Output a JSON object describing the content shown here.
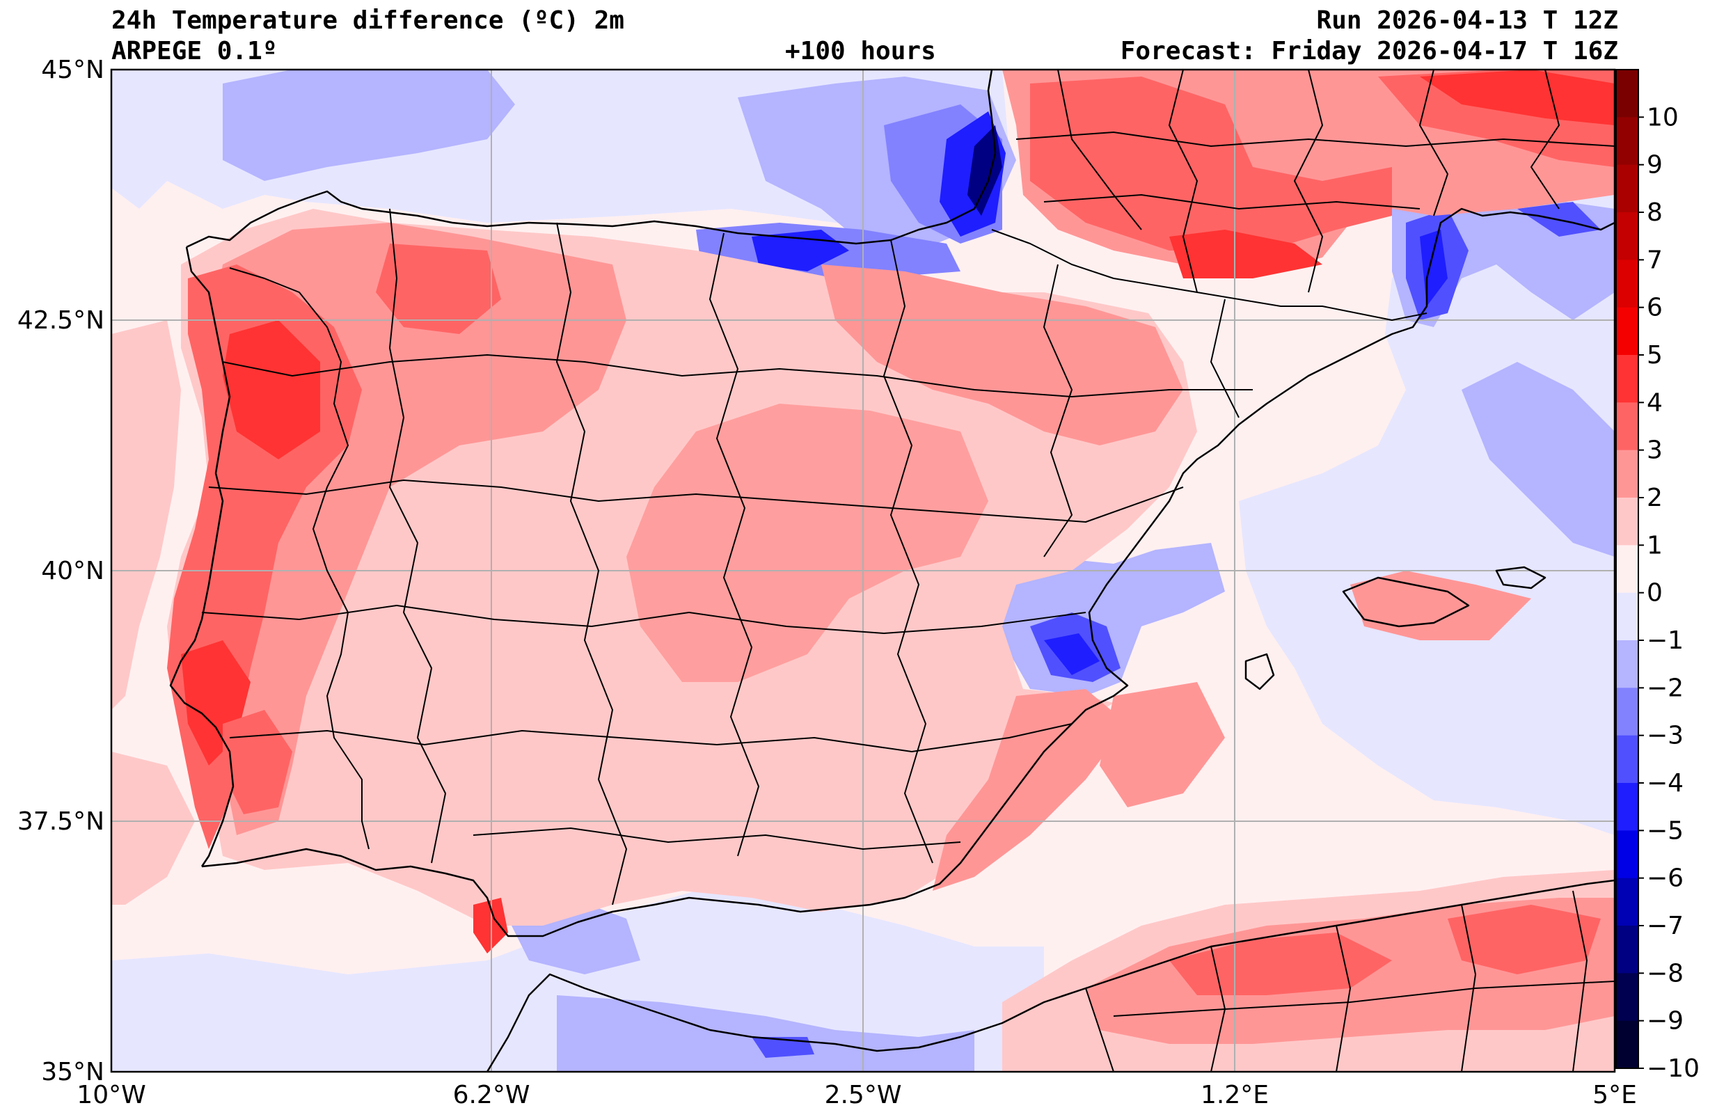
{
  "header": {
    "title": "24h Temperature difference (ºC) 2m",
    "model": "ARPEGE 0.1º",
    "lead_time": "+100 hours",
    "run": "Run 2026-04-13 T 12Z",
    "forecast": "Forecast: Friday 2026-04-17 T 16Z"
  },
  "axes": {
    "lat_labels": [
      "45°N",
      "42.5°N",
      "40°N",
      "37.5°N",
      "35°N"
    ],
    "lon_labels": [
      "10°W",
      "6.2°W",
      "2.5°W",
      "1.2°E",
      "5°E"
    ]
  },
  "colorbar": {
    "labels": [
      "10",
      "9",
      "8",
      "7",
      "6",
      "5",
      "4",
      "3",
      "2",
      "1",
      "0",
      "−1",
      "−2",
      "−3",
      "−4",
      "−5",
      "−6",
      "−7",
      "−8",
      "−9",
      "−10"
    ],
    "colors": [
      "#7a0000",
      "#930000",
      "#ab0000",
      "#c40000",
      "#dc0000",
      "#f50000",
      "#ff3333",
      "#ff6464",
      "#ff9696",
      "#ffc8c8",
      "#fff0f0",
      "#e6e6ff",
      "#b4b4ff",
      "#8282ff",
      "#5050ff",
      "#1e1eff",
      "#0000e6",
      "#0000b4",
      "#000082",
      "#000050",
      "#000030"
    ]
  }
}
